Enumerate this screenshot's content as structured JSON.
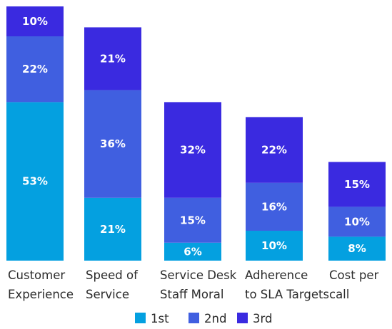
{
  "chart_data": {
    "type": "bar",
    "stacked": true,
    "categories": [
      [
        "Customer",
        "Experience"
      ],
      [
        "Speed of",
        "Service"
      ],
      [
        "Service Desk",
        "Staff Moral"
      ],
      [
        "Adherence",
        "to SLA Targets"
      ],
      [
        "Cost per",
        "call"
      ]
    ],
    "series": [
      {
        "name": "1st",
        "color": "#04a0e0",
        "values": [
          53,
          21,
          6,
          10,
          8
        ]
      },
      {
        "name": "2nd",
        "color": "#405fe0",
        "values": [
          22,
          36,
          15,
          16,
          10
        ]
      },
      {
        "name": "3rd",
        "color": "#3a2ae0",
        "values": [
          10,
          21,
          32,
          22,
          15
        ]
      }
    ],
    "value_suffix": "%",
    "ylim": [
      0,
      85
    ],
    "legend_position": "bottom",
    "grid": false
  }
}
